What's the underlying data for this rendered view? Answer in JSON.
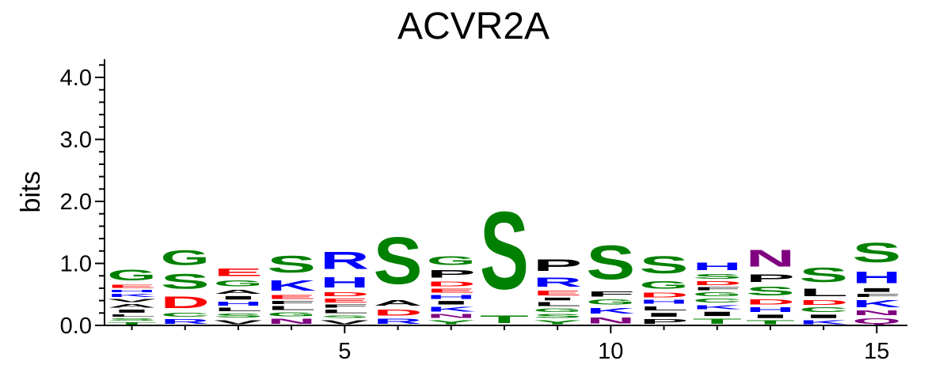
{
  "chart_data": {
    "type": "sequence-logo",
    "title": "ACVR2A",
    "ylabel": "bits",
    "xlabel": "",
    "ylim": [
      0,
      4.3
    ],
    "yticks": [
      {
        "value": 0,
        "label": "0.0"
      },
      {
        "value": 1,
        "label": "1.0"
      },
      {
        "value": 2,
        "label": "2.0"
      },
      {
        "value": 3,
        "label": "3.0"
      },
      {
        "value": 4,
        "label": "4.0"
      }
    ],
    "xticks": [
      {
        "value": 5,
        "label": "5"
      },
      {
        "value": 10,
        "label": "10"
      },
      {
        "value": 15,
        "label": "15"
      }
    ],
    "colors": {
      "G": "#008000",
      "S": "#008000",
      "T": "#008000",
      "Y": "#008000",
      "C": "#008000",
      "N": "#800080",
      "Q": "#800080",
      "K": "#0000ff",
      "R": "#0000ff",
      "H": "#0000ff",
      "D": "#ff0000",
      "E": "#ff0000",
      "A": "#000000",
      "V": "#000000",
      "L": "#000000",
      "I": "#000000",
      "P": "#000000",
      "F": "#000000",
      "W": "#000000",
      "M": "#000000"
    },
    "positions": [
      {
        "pos": 1,
        "letters": [
          [
            "T",
            0.06
          ],
          [
            "S",
            0.07
          ],
          [
            "L",
            0.06
          ],
          [
            "I",
            0.08
          ],
          [
            "A",
            0.09
          ],
          [
            "V",
            0.08
          ],
          [
            "K",
            0.08
          ],
          [
            "H",
            0.07
          ],
          [
            "E",
            0.08
          ],
          [
            "G",
            0.28
          ]
        ]
      },
      {
        "pos": 2,
        "letters": [
          [
            "R",
            0.12
          ],
          [
            "C",
            0.1
          ],
          [
            "D",
            0.3
          ],
          [
            "S",
            0.38
          ],
          [
            "G",
            0.38
          ]
        ]
      },
      {
        "pos": 3,
        "letters": [
          [
            "V",
            0.11
          ],
          [
            "S",
            0.1
          ],
          [
            "L",
            0.09
          ],
          [
            "H",
            0.1
          ],
          [
            "I",
            0.09
          ],
          [
            "A",
            0.11
          ],
          [
            "G",
            0.16
          ],
          [
            "E",
            0.2
          ]
        ]
      },
      {
        "pos": 4,
        "letters": [
          [
            "N",
            0.13
          ],
          [
            "G",
            0.1
          ],
          [
            "L",
            0.1
          ],
          [
            "F",
            0.08
          ],
          [
            "E",
            0.1
          ],
          [
            "K",
            0.26
          ],
          [
            "S",
            0.43
          ]
        ]
      },
      {
        "pos": 5,
        "letters": [
          [
            "V",
            0.11
          ],
          [
            "S",
            0.07
          ],
          [
            "L",
            0.09
          ],
          [
            "F",
            0.08
          ],
          [
            "E",
            0.1
          ],
          [
            "D",
            0.11
          ],
          [
            "H",
            0.26
          ],
          [
            "R",
            0.45
          ]
        ]
      },
      {
        "pos": 6,
        "letters": [
          [
            "R",
            0.13
          ],
          [
            "D",
            0.16
          ],
          [
            "A",
            0.15
          ],
          [
            "S",
            1.2
          ]
        ]
      },
      {
        "pos": 7,
        "letters": [
          [
            "Y",
            0.1
          ],
          [
            "N",
            0.1
          ],
          [
            "K",
            0.12
          ],
          [
            "I",
            0.09
          ],
          [
            "H",
            0.1
          ],
          [
            "E",
            0.1
          ],
          [
            "D",
            0.12
          ],
          [
            "P",
            0.2
          ],
          [
            "G",
            0.22
          ]
        ]
      },
      {
        "pos": 8,
        "letters": [
          [
            "T",
            0.2
          ],
          [
            "S",
            2.0
          ]
        ]
      },
      {
        "pos": 9,
        "letters": [
          [
            "Y",
            0.1
          ],
          [
            "S",
            0.1
          ],
          [
            "G",
            0.09
          ],
          [
            "L",
            0.1
          ],
          [
            "I",
            0.07
          ],
          [
            "E",
            0.12
          ],
          [
            "R",
            0.24
          ],
          [
            "P",
            0.3
          ]
        ]
      },
      {
        "pos": 10,
        "letters": [
          [
            "N",
            0.16
          ],
          [
            "K",
            0.15
          ],
          [
            "G",
            0.13
          ],
          [
            "F",
            0.13
          ],
          [
            "S",
            0.88
          ]
        ]
      },
      {
        "pos": 11,
        "letters": [
          [
            "P",
            0.12
          ],
          [
            "I",
            0.1
          ],
          [
            "L",
            0.11
          ],
          [
            "H",
            0.1
          ],
          [
            "D",
            0.12
          ],
          [
            "G",
            0.2
          ],
          [
            "S",
            0.45
          ]
        ]
      },
      {
        "pos": 12,
        "letters": [
          [
            "T",
            0.13
          ],
          [
            "I",
            0.11
          ],
          [
            "K",
            0.11
          ],
          [
            "C",
            0.1
          ],
          [
            "G",
            0.1
          ],
          [
            "F",
            0.08
          ],
          [
            "D",
            0.1
          ],
          [
            "S",
            0.12
          ],
          [
            "H",
            0.2
          ]
        ]
      },
      {
        "pos": 13,
        "letters": [
          [
            "T",
            0.1
          ],
          [
            "I",
            0.09
          ],
          [
            "H",
            0.12
          ],
          [
            "D",
            0.13
          ],
          [
            "S",
            0.22
          ],
          [
            "P",
            0.2
          ],
          [
            "N",
            0.44
          ]
        ]
      },
      {
        "pos": 14,
        "letters": [
          [
            "K",
            0.1
          ],
          [
            "I",
            0.09
          ],
          [
            "C",
            0.12
          ],
          [
            "D",
            0.12
          ],
          [
            "L",
            0.2
          ],
          [
            "S",
            0.37
          ]
        ]
      },
      {
        "pos": 15,
        "letters": [
          [
            "Q",
            0.14
          ],
          [
            "N",
            0.12
          ],
          [
            "K",
            0.18
          ],
          [
            "F",
            0.08
          ],
          [
            "I",
            0.1
          ],
          [
            "H",
            0.3
          ],
          [
            "S",
            0.5
          ]
        ]
      }
    ]
  }
}
